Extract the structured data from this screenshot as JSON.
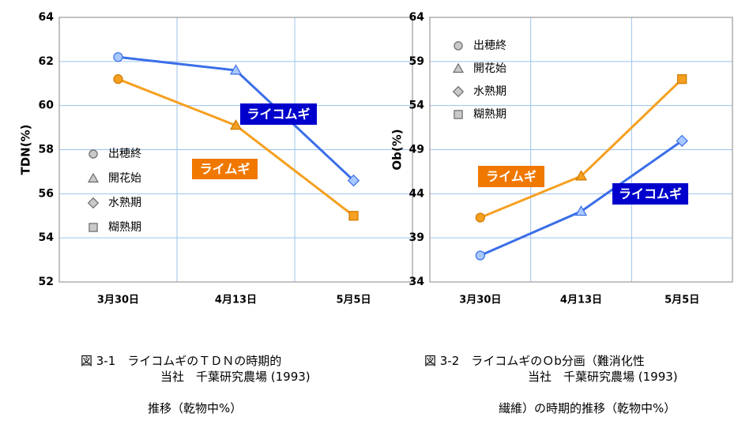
{
  "charts": [
    {
      "caption_line1": "図 3-1　ライコムギのＴＤＮの時期的",
      "caption_line2": "推移（乾物中%）",
      "source": "当社　千葉研究農場 (1993)"
    },
    {
      "caption_line1": "図 3-2　ライコムギのＯb分画（難消化性",
      "caption_line2": "繊維）の時期的推移（乾物中%）",
      "source": "当社　千葉研究農場 (1993)"
    }
  ],
  "chart_data": [
    {
      "type": "line",
      "title": "",
      "xlabel": "",
      "ylabel": "TDN(%)",
      "categories": [
        "3月30日",
        "4月13日",
        "5月5日"
      ],
      "ylim": [
        52,
        64
      ],
      "yticks": [
        "52",
        "54",
        "56",
        "58",
        "60",
        "62",
        "64"
      ],
      "grid": true,
      "legend": {
        "position": "center-left",
        "entries": [
          {
            "label": "出穂終",
            "marker": "circle"
          },
          {
            "label": "開花始",
            "marker": "triangle"
          },
          {
            "label": "水熟期",
            "marker": "diamond"
          },
          {
            "label": "糊熟期",
            "marker": "square"
          }
        ]
      },
      "series": [
        {
          "name": "ライコムギ",
          "color": "#3a6ee8",
          "label_bg": "#0000cc",
          "values": [
            62.2,
            61.6,
            56.6
          ],
          "markers": [
            "circle",
            "triangle",
            "diamond"
          ]
        },
        {
          "name": "ライムギ",
          "color": "#f5a020",
          "label_bg": "#f07800",
          "values": [
            61.2,
            59.1,
            55.0
          ],
          "markers": [
            "circle",
            "triangle",
            "square"
          ]
        }
      ]
    },
    {
      "type": "line",
      "title": "",
      "xlabel": "",
      "ylabel": "Ob(%)",
      "categories": [
        "3月30日",
        "4月13日",
        "5月5日"
      ],
      "ylim": [
        34,
        64
      ],
      "yticks": [
        "34",
        "39",
        "44",
        "49",
        "54",
        "59",
        "64"
      ],
      "grid": true,
      "legend": {
        "position": "top-left",
        "entries": [
          {
            "label": "出穂終",
            "marker": "circle"
          },
          {
            "label": "開花始",
            "marker": "triangle"
          },
          {
            "label": "水熟期",
            "marker": "diamond"
          },
          {
            "label": "糊熟期",
            "marker": "square"
          }
        ]
      },
      "series": [
        {
          "name": "ライコムギ",
          "color": "#3a6ee8",
          "label_bg": "#0000cc",
          "values": [
            37.0,
            42.0,
            50.0
          ],
          "markers": [
            "circle",
            "triangle",
            "diamond"
          ]
        },
        {
          "name": "ライムギ",
          "color": "#f5a020",
          "label_bg": "#f07800",
          "values": [
            41.3,
            46.0,
            57.0
          ],
          "markers": [
            "circle",
            "triangle",
            "square"
          ]
        }
      ]
    }
  ]
}
